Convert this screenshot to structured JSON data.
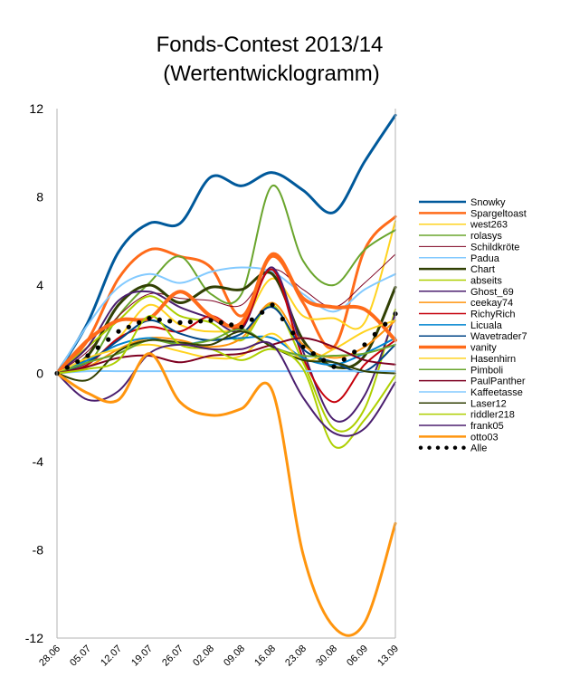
{
  "chart_data": {
    "type": "line",
    "title": "Fonds-Contest 2013/14",
    "subtitle": "(Wertentwicklogramm)",
    "xlabel": "",
    "ylabel": "",
    "ylim": [
      -12,
      12
    ],
    "yticks": [
      "12",
      "8",
      "4",
      "0",
      "-4",
      "-8",
      "-12"
    ],
    "categories": [
      "28.06",
      "05.07",
      "12.07",
      "19.07",
      "26.07",
      "02.08",
      "09.08",
      "16.08",
      "23.08",
      "30.08",
      "06.09",
      "13.09"
    ],
    "grid": false,
    "legend_position": "right",
    "series": [
      {
        "name": "Snowky",
        "color": "#00599b",
        "width": 3,
        "values": [
          0,
          2.3,
          5.5,
          6.8,
          6.8,
          8.9,
          8.5,
          9.1,
          8.3,
          7.3,
          9.6,
          11.7
        ]
      },
      {
        "name": "Spargeltoast",
        "color": "#ff6b1a",
        "width": 3,
        "values": [
          0,
          1.5,
          4.3,
          5.6,
          5.3,
          4.8,
          2.6,
          5.3,
          3.2,
          1.2,
          5.6,
          7.1
        ]
      },
      {
        "name": "west263",
        "color": "#ffd320",
        "width": 2,
        "values": [
          0,
          0.5,
          1.6,
          3.1,
          2.2,
          1.9,
          2.2,
          4.3,
          2.6,
          2.5,
          2.3,
          6.9
        ]
      },
      {
        "name": "rolasys",
        "color": "#6aa52d",
        "width": 2,
        "values": [
          0,
          0.4,
          2.6,
          4.1,
          5.3,
          3.6,
          3.6,
          8.5,
          5.1,
          4.0,
          5.6,
          6.5
        ]
      },
      {
        "name": "Schildkröte",
        "color": "#7e0021",
        "width": 1,
        "values": [
          0,
          1.0,
          2.6,
          3.6,
          3.4,
          3.3,
          3.1,
          4.7,
          3.8,
          3.0,
          4.1,
          5.4
        ]
      },
      {
        "name": "Padua",
        "color": "#83caff",
        "width": 2,
        "values": [
          0,
          2.2,
          3.9,
          4.5,
          4.1,
          4.6,
          4.8,
          4.6,
          3.6,
          2.8,
          3.8,
          4.5
        ]
      },
      {
        "name": "Chart",
        "color": "#314004",
        "width": 3,
        "values": [
          0,
          0.8,
          3.1,
          4.0,
          3.2,
          3.9,
          3.8,
          4.5,
          1.5,
          0.3,
          0.8,
          3.9
        ]
      },
      {
        "name": "abseits",
        "color": "#aecf00",
        "width": 2,
        "values": [
          0,
          1.2,
          2.4,
          3.5,
          2.6,
          2.3,
          1.5,
          3.1,
          0.5,
          -2.5,
          -1.6,
          2.9
        ]
      },
      {
        "name": "Ghost_69",
        "color": "#4b1f6f",
        "width": 2,
        "values": [
          0,
          1.2,
          3.3,
          3.7,
          3.0,
          2.5,
          2.0,
          4.8,
          1.0,
          -2.1,
          -1.0,
          2.7
        ]
      },
      {
        "name": "ceekay74",
        "color": "#ff950e",
        "width": 2,
        "values": [
          0,
          0.3,
          1.1,
          1.6,
          1.5,
          1.2,
          1.6,
          3.2,
          1.3,
          0.7,
          1.2,
          2.4
        ]
      },
      {
        "name": "RichyRich",
        "color": "#c5000b",
        "width": 2,
        "values": [
          0,
          0.4,
          1.6,
          2.1,
          1.9,
          2.6,
          2.1,
          4.7,
          0.7,
          -1.3,
          0.4,
          1.5
        ]
      },
      {
        "name": "Licuala",
        "color": "#0084d1",
        "width": 2,
        "values": [
          0,
          0.6,
          1.3,
          1.6,
          1.3,
          1.5,
          1.6,
          1.6,
          0.7,
          0.4,
          0.9,
          1.6
        ]
      },
      {
        "name": "Wavetrader7",
        "color": "#004586",
        "width": 2,
        "values": [
          0,
          0.5,
          1.5,
          2.4,
          1.8,
          1.5,
          1.8,
          3.0,
          1.1,
          0.5,
          0.1,
          1.3
        ]
      },
      {
        "name": "vanity",
        "color": "#ff6b1a",
        "width": 4,
        "values": [
          0,
          1.5,
          2.4,
          2.5,
          3.7,
          2.6,
          2.3,
          5.4,
          3.4,
          3.0,
          2.9,
          1.5
        ]
      },
      {
        "name": "Hasenhirn",
        "color": "#ffd320",
        "width": 2,
        "values": [
          0,
          0.7,
          1.1,
          1.3,
          1.0,
          0.7,
          0.8,
          1.8,
          0.6,
          1.1,
          1.9,
          2.4
        ]
      },
      {
        "name": "Pimboli",
        "color": "#6aa52d",
        "width": 2,
        "values": [
          0,
          0.5,
          0.9,
          1.5,
          1.3,
          1.5,
          2.0,
          1.2,
          0.8,
          0.8,
          0.9,
          1.3
        ]
      },
      {
        "name": "PaulPanther",
        "color": "#7e0021",
        "width": 2,
        "values": [
          0,
          0.3,
          0.7,
          0.8,
          0.5,
          0.8,
          0.9,
          1.3,
          1.6,
          1.2,
          0.6,
          0.4
        ]
      },
      {
        "name": "Kaffeetasse",
        "color": "#83caff",
        "width": 2,
        "values": [
          0,
          0.1,
          0.1,
          0.1,
          0.1,
          0.1,
          0.1,
          0.1,
          0.1,
          0.1,
          0.1,
          0.1
        ]
      },
      {
        "name": "Laser12",
        "color": "#314004",
        "width": 2,
        "values": [
          0,
          -0.3,
          1.0,
          1.5,
          1.4,
          1.3,
          1.9,
          1.2,
          0.6,
          0.5,
          0.1,
          0.0
        ]
      },
      {
        "name": "riddler218",
        "color": "#aecf00",
        "width": 2,
        "values": [
          0,
          0.2,
          0.6,
          2.6,
          1.3,
          1.1,
          0.6,
          1.1,
          0.2,
          -3.3,
          -2.1,
          -0.1
        ]
      },
      {
        "name": "frank05",
        "color": "#4b1f6f",
        "width": 2,
        "values": [
          0,
          -1.2,
          -0.8,
          0.9,
          1.3,
          1.1,
          1.1,
          1.3,
          -1.1,
          -2.7,
          -2.5,
          -0.4
        ]
      },
      {
        "name": "otto03",
        "color": "#ff950e",
        "width": 3,
        "values": [
          0,
          -0.9,
          -1.2,
          0.9,
          -1.3,
          -1.9,
          -1.6,
          -0.8,
          -8.2,
          -11.5,
          -11.3,
          -6.8
        ]
      },
      {
        "name": "Alle",
        "color": "#000000",
        "width": 4,
        "dotted": true,
        "values": [
          0,
          0.8,
          1.9,
          2.5,
          2.3,
          2.4,
          2.1,
          3.1,
          1.2,
          0.3,
          1.3,
          2.7
        ]
      }
    ]
  }
}
